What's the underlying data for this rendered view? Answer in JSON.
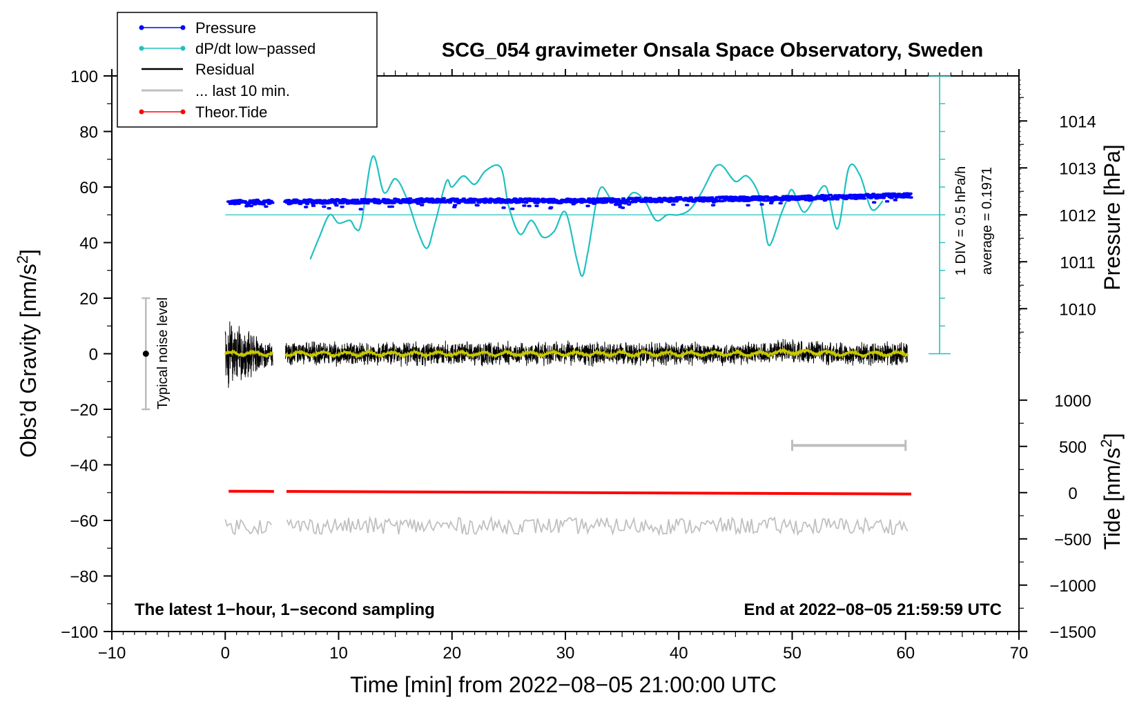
{
  "chart_data": {
    "type": "line",
    "title": "SCG_054 gravimeter Onsala Space Observatory, Sweden",
    "xlabel": "Time [min] from 2022−08−05 21:00:00 UTC",
    "ylabel_left": "Obs’d Gravity [nm/s",
    "ylabel_left_sup": "2",
    "ylabel_left_end": "]",
    "ylabel_right_pressure": "Pressure [hPa]",
    "ylabel_right_tide": "Tide [nm/s",
    "ylabel_right_tide_sup": "2",
    "ylabel_right_tide_end": "]",
    "xlim": [
      -10,
      70
    ],
    "ylim": [
      -100,
      100
    ],
    "x_ticks": [
      "−10",
      "0",
      "10",
      "20",
      "30",
      "40",
      "50",
      "60",
      "70"
    ],
    "y_ticks": [
      "100",
      "80",
      "60",
      "40",
      "20",
      "0",
      "−20",
      "−40",
      "−60",
      "−80",
      "−100"
    ],
    "pressure_ticks": [
      "1014",
      "1013",
      "1012",
      "1011",
      "1010"
    ],
    "tide_ticks": [
      "1000",
      "500",
      "0",
      "−500",
      "−1000",
      "−1500"
    ],
    "bottom_left_note": "The latest 1−hour, 1−second sampling",
    "bottom_right_note": "End at 2022−08−05 21:59:59 UTC",
    "scale_bar_label_1": "1 DIV = 0.5 hPa/h",
    "scale_bar_label_2": "average = 0.1971",
    "noise_label": "Typical noise level",
    "legend": [
      "Pressure",
      "dP/dt low−passed",
      "Residual",
      "... last 10 min.",
      "Theor.Tide"
    ],
    "series": [
      {
        "name": "Pressure",
        "color": "#0000ff",
        "x": [
          0,
          10,
          20,
          30,
          40,
          50,
          60
        ],
        "values": [
          54.5,
          54.8,
          55.2,
          55.0,
          55.5,
          56.0,
          57.0
        ]
      },
      {
        "name": "dP/dt low−passed",
        "color": "#20c0c0",
        "x": [
          7.5,
          8.3,
          9.2,
          10,
          11,
          11.5,
          12,
          13,
          14,
          15,
          16,
          17,
          17.8,
          18.5,
          19.5,
          20,
          21,
          22,
          23,
          24.3,
          25,
          26,
          27,
          28,
          29,
          30,
          31,
          31.5,
          32,
          33,
          34,
          35,
          36,
          37,
          38,
          39,
          40,
          41,
          42,
          43,
          43.5,
          44,
          45,
          46,
          47,
          47.5,
          48,
          49,
          49.5,
          50,
          51,
          52,
          53,
          54,
          55,
          56,
          57,
          58
        ],
        "values": [
          34,
          42,
          50,
          47,
          48,
          45,
          47,
          71,
          58,
          63,
          56,
          44,
          38,
          47,
          62,
          60,
          64,
          61,
          66,
          67,
          53,
          43,
          48,
          42,
          44,
          51,
          34,
          28,
          37,
          59,
          56,
          54,
          58,
          55,
          48,
          50,
          50,
          52,
          58,
          66,
          68,
          67,
          62,
          64,
          58,
          48,
          39,
          50,
          55,
          59,
          51,
          56,
          60,
          45,
          67,
          64,
          52,
          55
        ]
      },
      {
        "name": "Residual",
        "color": "#000000",
        "amplitude_start": 16,
        "amplitude_end": 5
      },
      {
        "name": "... last 10 min.",
        "color": "#c0c0c0",
        "offset": -62
      },
      {
        "name": "Theor.Tide",
        "color": "#ff0000",
        "x": [
          0,
          60
        ],
        "values": [
          -49.5,
          -50.5
        ]
      }
    ],
    "noise_bar": {
      "x": -7,
      "ymin": -20,
      "ymax": 20
    },
    "last10_bar": {
      "x0": 50,
      "x1": 60,
      "y": -33
    },
    "gap": [
      4.2,
      5.3
    ]
  },
  "colors": {
    "pressure": "#0000ff",
    "dpdt": "#20c0c0",
    "residual": "#000000",
    "residual_smooth": "#c8c800",
    "last10": "#c0c0c0",
    "tide": "#ff0000"
  }
}
